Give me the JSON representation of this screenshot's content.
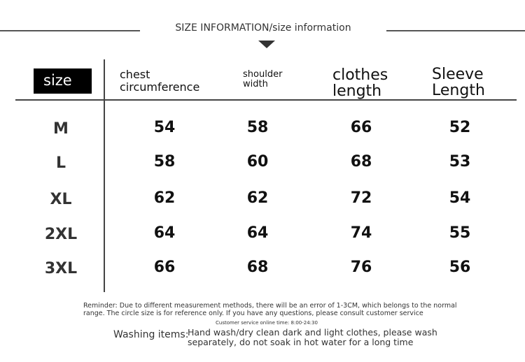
{
  "title": "SIZE INFORMATION/size information",
  "headers": {
    "size": "size",
    "chest_1": "chest",
    "chest_2": "circumference",
    "shoulder_1": "shoulder",
    "shoulder_2": "width",
    "clothes_1": "clothes",
    "clothes_2": "length",
    "sleeve_1": "Sleeve",
    "sleeve_2": "Length"
  },
  "rows": [
    {
      "size": "M",
      "chest": "54",
      "shoulder": "58",
      "clothes": "66",
      "sleeve": "52"
    },
    {
      "size": "L",
      "chest": "58",
      "shoulder": "60",
      "clothes": "68",
      "sleeve": "53"
    },
    {
      "size": "XL",
      "chest": "62",
      "shoulder": "62",
      "clothes": "72",
      "sleeve": "54"
    },
    {
      "size": "2XL",
      "chest": "64",
      "shoulder": "64",
      "clothes": "74",
      "sleeve": "55"
    },
    {
      "size": "3XL",
      "chest": "66",
      "shoulder": "68",
      "clothes": "76",
      "sleeve": "56"
    }
  ],
  "reminder_1": "Reminder: Due to different measurement methods, there will be an error of 1-3CM, which belongs to the normal",
  "reminder_2": "range. The circle size is for reference only. If you have any questions, please consult customer service",
  "service_time": "Customer service online time: 8:00-24:30",
  "washing_label": "Washing items:",
  "washing_1": "Hand wash/dry clean dark and light clothes, please wash",
  "washing_2": "separately, do not soak in hot water for a long time"
}
